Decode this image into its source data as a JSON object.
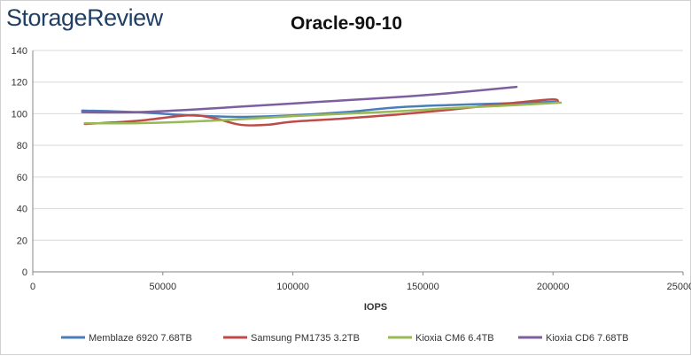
{
  "brand": {
    "logo_text": "StorageReview"
  },
  "colors": {
    "memblaze": "#4a7ebb",
    "samsung": "#be4b48",
    "cm6": "#98b954",
    "cd6": "#7d5fa0",
    "grid": "#d9d9d9"
  },
  "chart_data": {
    "type": "line",
    "title": "Oracle-90-10",
    "xlabel": "IOPS",
    "ylabel": "",
    "xlim": [
      0,
      250000
    ],
    "ylim": [
      0,
      140
    ],
    "x_ticks": [
      "0",
      "50000",
      "100000",
      "150000",
      "200000",
      "250000"
    ],
    "y_ticks": [
      "0",
      "20",
      "40",
      "60",
      "80",
      "100",
      "120",
      "140"
    ],
    "x_tick_values": [
      0,
      50000,
      100000,
      150000,
      200000,
      250000
    ],
    "y_tick_values": [
      0,
      20,
      40,
      60,
      80,
      100,
      120,
      140
    ],
    "grid": true,
    "legend_position": "bottom",
    "series": [
      {
        "name": "Memblaze 6920 7.68TB",
        "x": [
          19000,
          40000,
          60000,
          80000,
          100000,
          120000,
          140000,
          160000,
          180000,
          201000
        ],
        "y": [
          102,
          101,
          99,
          98,
          99,
          101,
          104,
          105.5,
          106.5,
          107.5
        ]
      },
      {
        "name": "Samsung PM1735 3.2TB",
        "x": [
          20000,
          40000,
          60000,
          70000,
          80000,
          90000,
          100000,
          120000,
          140000,
          160000,
          180000,
          199000,
          202000
        ],
        "y": [
          93.5,
          95.5,
          99,
          97,
          93,
          93,
          95,
          97,
          99.5,
          102.5,
          106,
          109,
          107.5
        ]
      },
      {
        "name": "Kioxia CM6 6.4TB",
        "x": [
          20000,
          40000,
          60000,
          80000,
          100000,
          120000,
          140000,
          160000,
          180000,
          203000
        ],
        "y": [
          94,
          94,
          95,
          96.5,
          98.5,
          100,
          101.5,
          103.5,
          105,
          107
        ]
      },
      {
        "name": "Kioxia CD6 7.68TB",
        "x": [
          19000,
          40000,
          60000,
          80000,
          100000,
          120000,
          140000,
          160000,
          186000
        ],
        "y": [
          101,
          101,
          102.5,
          104.5,
          106.5,
          108.5,
          110.5,
          113,
          117
        ]
      }
    ]
  }
}
